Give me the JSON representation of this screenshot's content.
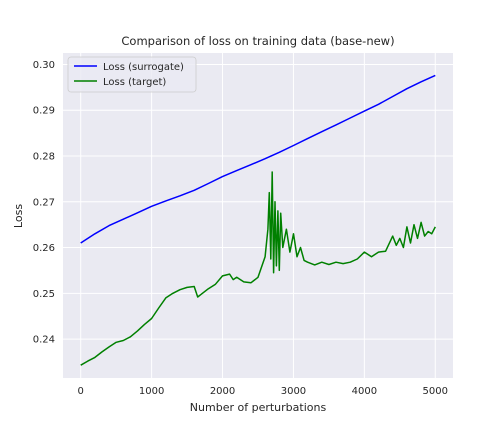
{
  "chart_data": {
    "type": "line",
    "title": "Comparison of loss on training data (base-new)",
    "xlabel": "Number of perturbations",
    "ylabel": "Loss",
    "xlim": [
      -250,
      5250
    ],
    "ylim": [
      0.2315,
      0.3025
    ],
    "xticks": [
      0,
      1000,
      2000,
      3000,
      4000,
      5000
    ],
    "yticks": [
      0.24,
      0.25,
      0.26,
      0.27,
      0.28,
      0.29,
      0.3
    ],
    "ytick_labels": [
      "0.24",
      "0.25",
      "0.26",
      "0.27",
      "0.28",
      "0.29",
      "0.30"
    ],
    "grid": true,
    "legend_position": "upper-left",
    "series": [
      {
        "name": "Loss (surrogate)",
        "color": "#0000ff",
        "x": [
          0,
          200,
          400,
          600,
          800,
          1000,
          1200,
          1400,
          1600,
          1800,
          2000,
          2200,
          2400,
          2600,
          2800,
          3000,
          3200,
          3400,
          3600,
          3800,
          4000,
          4200,
          4400,
          4600,
          4800,
          5000
        ],
        "y": [
          0.261,
          0.263,
          0.2648,
          0.2662,
          0.2676,
          0.269,
          0.2702,
          0.2713,
          0.2725,
          0.274,
          0.2755,
          0.2768,
          0.2781,
          0.2794,
          0.2808,
          0.2823,
          0.2838,
          0.2853,
          0.2868,
          0.2883,
          0.2898,
          0.2913,
          0.293,
          0.2947,
          0.2962,
          0.2976
        ]
      },
      {
        "name": "Loss (target)",
        "color": "#008000",
        "x": [
          0,
          100,
          200,
          300,
          400,
          500,
          600,
          700,
          800,
          900,
          1000,
          1100,
          1200,
          1300,
          1400,
          1500,
          1600,
          1650,
          1700,
          1800,
          1900,
          2000,
          2100,
          2150,
          2200,
          2300,
          2400,
          2500,
          2600,
          2640,
          2660,
          2680,
          2700,
          2720,
          2740,
          2760,
          2780,
          2800,
          2820,
          2850,
          2900,
          2950,
          3000,
          3050,
          3100,
          3150,
          3200,
          3300,
          3400,
          3500,
          3600,
          3700,
          3800,
          3900,
          4000,
          4100,
          4200,
          4300,
          4400,
          4450,
          4500,
          4550,
          4600,
          4650,
          4700,
          4750,
          4800,
          4850,
          4900,
          4950,
          5000
        ],
        "y": [
          0.2343,
          0.2352,
          0.236,
          0.2372,
          0.2383,
          0.2393,
          0.2397,
          0.2405,
          0.2418,
          0.2432,
          0.2445,
          0.2468,
          0.249,
          0.25,
          0.2508,
          0.2513,
          0.2515,
          0.2492,
          0.2498,
          0.251,
          0.252,
          0.2538,
          0.2542,
          0.253,
          0.2535,
          0.2525,
          0.2523,
          0.2535,
          0.258,
          0.264,
          0.272,
          0.2575,
          0.2765,
          0.2545,
          0.27,
          0.256,
          0.268,
          0.255,
          0.2675,
          0.26,
          0.264,
          0.259,
          0.263,
          0.258,
          0.26,
          0.2572,
          0.2568,
          0.2562,
          0.2568,
          0.2563,
          0.2568,
          0.2565,
          0.2568,
          0.2575,
          0.259,
          0.258,
          0.259,
          0.2592,
          0.2625,
          0.2605,
          0.262,
          0.26,
          0.2645,
          0.261,
          0.265,
          0.262,
          0.2655,
          0.2625,
          0.2635,
          0.263,
          0.2645
        ]
      }
    ]
  }
}
